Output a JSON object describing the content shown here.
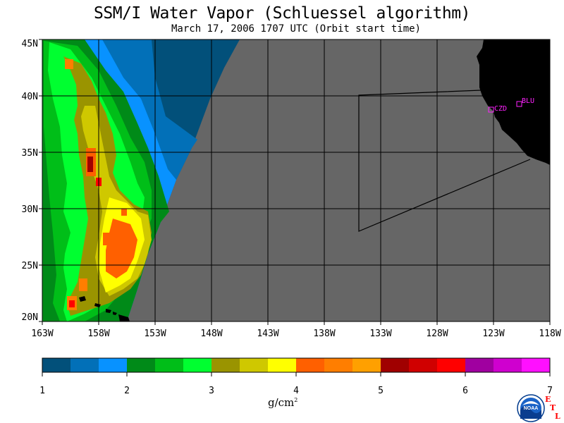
{
  "title": "SSM/I Water Vapor (Schluessel algorithm)",
  "subtitle": "March 17, 2006  1707 UTC  (Orbit start time)",
  "map": {
    "lat_ticks": [
      "45N",
      "40N",
      "35N",
      "30N",
      "25N",
      "20N"
    ],
    "lon_ticks": [
      "163W",
      "158W",
      "153W",
      "148W",
      "143W",
      "138W",
      "133W",
      "128W",
      "123W",
      "118W"
    ],
    "lat_range": [
      20,
      45
    ],
    "lon_range": [
      -163,
      -118
    ],
    "no_data_color": "#666666",
    "land_color": "#000000",
    "stations": [
      {
        "id": "czd",
        "label": "CZD",
        "color": "#ff22ff"
      },
      {
        "id": "blu",
        "label": "BLU",
        "color": "#ff22ff"
      }
    ]
  },
  "colorbar": {
    "unit": "g/cm",
    "unit_exponent": "2",
    "tick_labels": [
      "1",
      "2",
      "3",
      "4",
      "5",
      "6",
      "7"
    ],
    "colors": [
      "#02507a",
      "#0270b8",
      "#0892ff",
      "#008a18",
      "#00be18",
      "#00ff30",
      "#9a9400",
      "#cfc800",
      "#ffff00",
      "#ff6000",
      "#ff7e00",
      "#ffa000",
      "#a00000",
      "#d00000",
      "#ff0000",
      "#a000a0",
      "#cf00cf",
      "#ff10ff"
    ]
  },
  "logos": {
    "noaa": "NOAA",
    "etl_letters": [
      "E",
      "T",
      "L"
    ]
  }
}
